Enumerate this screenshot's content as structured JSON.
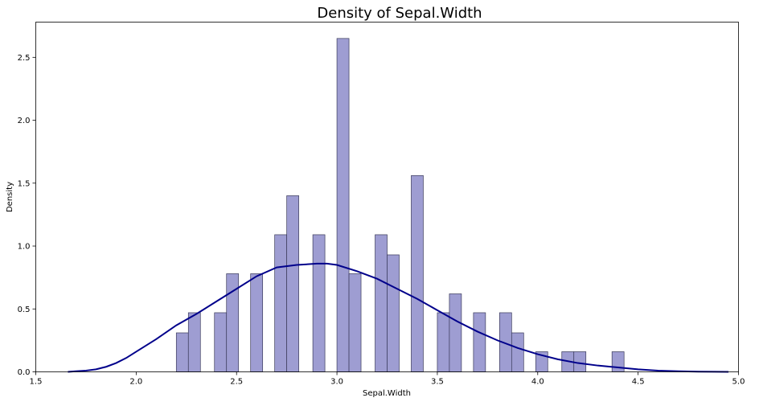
{
  "chart_data": {
    "type": "bar",
    "title": "Density of Sepal.Width",
    "xlabel": "Sepal.Width",
    "ylabel": "Density",
    "xlim": [
      1.5,
      5.0
    ],
    "ylim": [
      0,
      2.78
    ],
    "xticks": [
      1.5,
      2.0,
      2.5,
      3.0,
      3.5,
      4.0,
      4.5,
      5.0
    ],
    "xtick_labels": [
      "1.5",
      "2.0",
      "2.5",
      "3.0",
      "3.5",
      "4.0",
      "4.5",
      "5.0"
    ],
    "yticks": [
      0,
      0.5,
      1.0,
      1.5,
      2.0,
      2.5
    ],
    "ytick_labels": [
      "0.0",
      "0.5",
      "1.0",
      "1.5",
      "2.0",
      "2.5"
    ],
    "grid": false,
    "colors": {
      "bars": "#9e9dd2",
      "bar_edge": "#3a3a5a",
      "kde": "#00008b"
    },
    "histogram": {
      "bin_width": 0.06,
      "bins": [
        {
          "x_start": 2.2,
          "density": 0.31
        },
        {
          "x_start": 2.26,
          "density": 0.47
        },
        {
          "x_start": 2.39,
          "density": 0.47
        },
        {
          "x_start": 2.45,
          "density": 0.78
        },
        {
          "x_start": 2.57,
          "density": 0.78
        },
        {
          "x_start": 2.69,
          "density": 1.09
        },
        {
          "x_start": 2.75,
          "density": 1.4
        },
        {
          "x_start": 2.88,
          "density": 1.09
        },
        {
          "x_start": 3.0,
          "density": 2.65
        },
        {
          "x_start": 3.06,
          "density": 0.78
        },
        {
          "x_start": 3.19,
          "density": 1.09
        },
        {
          "x_start": 3.25,
          "density": 0.93
        },
        {
          "x_start": 3.37,
          "density": 1.56
        },
        {
          "x_start": 3.5,
          "density": 0.47
        },
        {
          "x_start": 3.56,
          "density": 0.62
        },
        {
          "x_start": 3.68,
          "density": 0.47
        },
        {
          "x_start": 3.81,
          "density": 0.47
        },
        {
          "x_start": 3.87,
          "density": 0.31
        },
        {
          "x_start": 3.99,
          "density": 0.16
        },
        {
          "x_start": 4.12,
          "density": 0.16
        },
        {
          "x_start": 4.18,
          "density": 0.16
        },
        {
          "x_start": 4.37,
          "density": 0.16
        }
      ]
    },
    "kde": {
      "x": [
        1.66,
        1.7,
        1.75,
        1.8,
        1.85,
        1.9,
        1.95,
        2.0,
        2.1,
        2.2,
        2.3,
        2.4,
        2.5,
        2.6,
        2.7,
        2.8,
        2.9,
        2.95,
        3.0,
        3.1,
        3.2,
        3.3,
        3.4,
        3.5,
        3.6,
        3.7,
        3.8,
        3.9,
        4.0,
        4.1,
        4.2,
        4.3,
        4.4,
        4.5,
        4.6,
        4.7,
        4.8,
        4.95
      ],
      "y": [
        0.0,
        0.005,
        0.01,
        0.02,
        0.04,
        0.07,
        0.11,
        0.16,
        0.26,
        0.37,
        0.46,
        0.56,
        0.66,
        0.76,
        0.83,
        0.85,
        0.86,
        0.86,
        0.85,
        0.8,
        0.74,
        0.66,
        0.58,
        0.49,
        0.4,
        0.32,
        0.25,
        0.19,
        0.14,
        0.1,
        0.07,
        0.05,
        0.035,
        0.02,
        0.01,
        0.005,
        0.002,
        0.0
      ]
    }
  }
}
